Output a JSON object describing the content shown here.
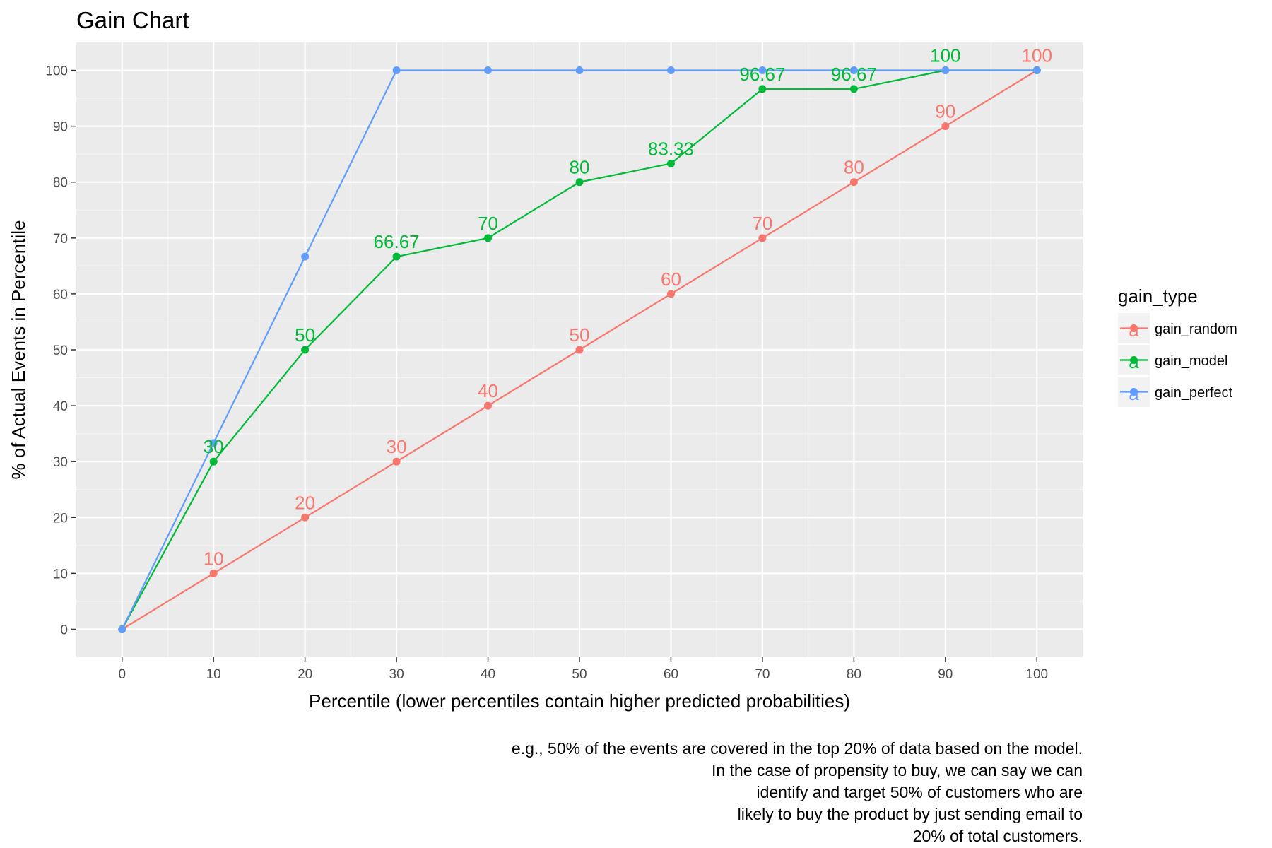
{
  "chart_data": {
    "type": "line",
    "title": "Gain Chart",
    "xlabel": "Percentile (lower percentiles contain higher predicted probabilities)",
    "ylabel": "% of Actual Events in Percentile",
    "xlim": [
      -5,
      105
    ],
    "ylim": [
      -5,
      105
    ],
    "x_ticks": [
      0,
      10,
      20,
      30,
      40,
      50,
      60,
      70,
      80,
      90,
      100
    ],
    "y_ticks": [
      0,
      10,
      20,
      30,
      40,
      50,
      60,
      70,
      80,
      90,
      100
    ],
    "x_tick_labels": [
      "0",
      "10",
      "20",
      "30",
      "40",
      "50",
      "60",
      "70",
      "80",
      "90",
      "100"
    ],
    "y_tick_labels": [
      "0",
      "10",
      "20",
      "30",
      "40",
      "50",
      "60",
      "70",
      "80",
      "90",
      "100"
    ],
    "grid": true,
    "legend": {
      "title": "gain_type",
      "position": "right",
      "key_glyph": "a"
    },
    "series": [
      {
        "name": "gain_random",
        "color": "#F8766D",
        "x": [
          0,
          10,
          20,
          30,
          40,
          50,
          60,
          70,
          80,
          90,
          100
        ],
        "y": [
          0,
          10,
          20,
          30,
          40,
          50,
          60,
          70,
          80,
          90,
          100
        ],
        "labels": [
          "",
          "10",
          "20",
          "30",
          "40",
          "50",
          "60",
          "70",
          "80",
          "90",
          "100"
        ]
      },
      {
        "name": "gain_model",
        "color": "#00BA38",
        "x": [
          0,
          10,
          20,
          30,
          40,
          50,
          60,
          70,
          80,
          90,
          100
        ],
        "y": [
          0,
          30,
          50,
          66.67,
          70,
          80,
          83.33,
          96.67,
          96.67,
          100,
          100
        ],
        "labels": [
          "",
          "30",
          "50",
          "66.67",
          "70",
          "80",
          "83.33",
          "96.67",
          "96.67",
          "100",
          ""
        ]
      },
      {
        "name": "gain_perfect",
        "color": "#619CFF",
        "x": [
          0,
          10,
          20,
          30,
          40,
          50,
          60,
          70,
          80,
          90,
          100
        ],
        "y": [
          0,
          33.33,
          66.67,
          100,
          100,
          100,
          100,
          100,
          100,
          100,
          100
        ],
        "labels": [
          "",
          "",
          "",
          "",
          "",
          "",
          "",
          "",
          "",
          "",
          ""
        ]
      }
    ],
    "caption": [
      "e.g., 50% of the events are covered in the top 20% of data based on the model.",
      "In the case of propensity to buy, we can say we can",
      "identify and target 50% of customers who are",
      "likely to buy the product by just sending email to",
      "20% of total customers."
    ]
  }
}
